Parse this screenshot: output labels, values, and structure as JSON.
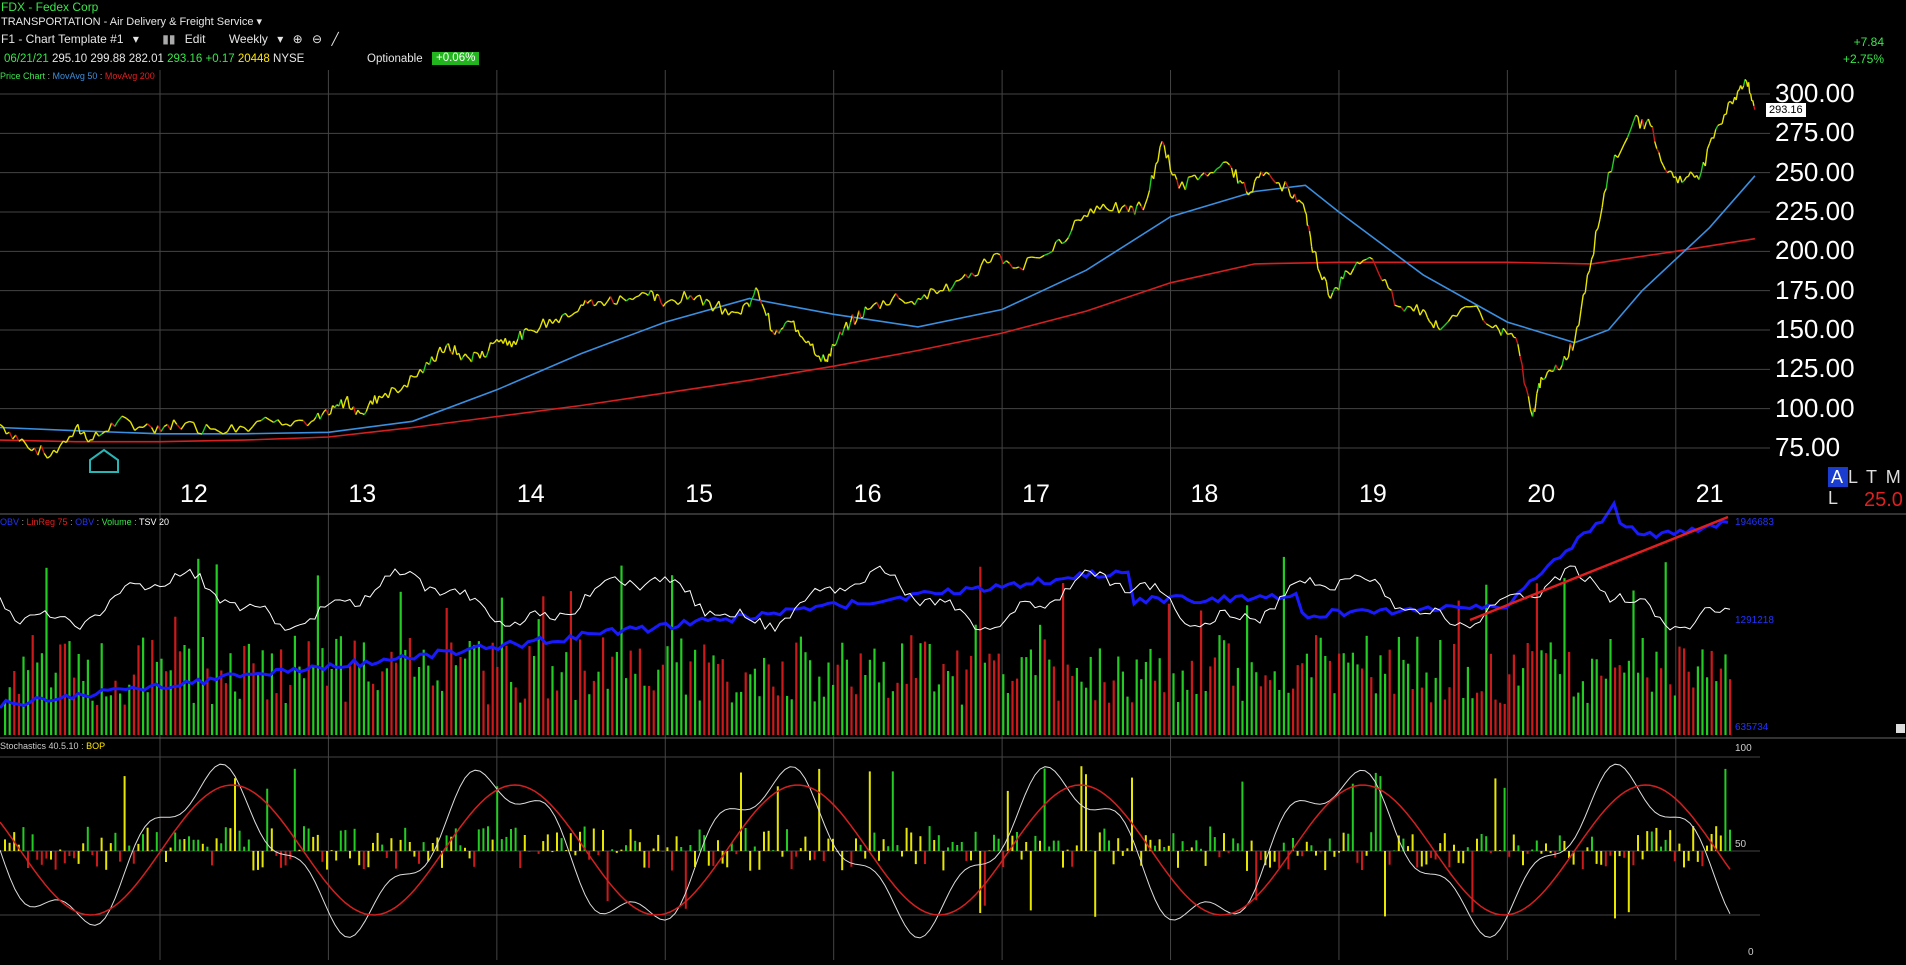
{
  "header": {
    "title": "FDX - Fedex Corp",
    "sector": "TRANSPORTATION - Air Delivery & Freight Service"
  },
  "toolbar": {
    "template": "F1 - Chart Template #1",
    "edit": "Edit",
    "period": "Weekly"
  },
  "quote": {
    "date": "06/21/21",
    "open": "295.10",
    "high": "299.88",
    "low": "282.01",
    "close": "293.16",
    "change": "+0.17",
    "volume": "20448",
    "exchange": "NYSE",
    "optionable": "Optionable",
    "pct_badge": "+0.06%",
    "net_change": "+7.84",
    "pct_change": "+2.75%"
  },
  "studies": {
    "price_chart": "Price Chart",
    "ma50": "MovAvg 50",
    "ma200": "MovAvg 200",
    "obv": "OBV",
    "linreg": "LinReg 75",
    "obv2": "OBV",
    "volume": "Volume",
    "tsv": "TSV 20",
    "stoch": "Stochastics 40.5.10",
    "bop": "BOP"
  },
  "price_axis": {
    "labels": [
      "300.00",
      "275.00",
      "250.00",
      "225.00",
      "200.00",
      "175.00",
      "150.00",
      "125.00",
      "100.00",
      "75.00"
    ],
    "last_tag": "293.16",
    "scale_a": "A",
    "scale_rest": "L T M L",
    "scale_value": "25.0"
  },
  "volume_axis": {
    "top": "1946683",
    "mid": "1291218",
    "bottom": "635734"
  },
  "stoch_axis": {
    "top": "100",
    "mid": "50",
    "bottom": "0"
  },
  "colors": {
    "up": "#22cc22",
    "down": "#cc1a1a",
    "neutral": "#e6e600",
    "ma50": "#3a8fe0",
    "ma200": "#d42020",
    "obv": "#1a1aff",
    "tsv": "#ffffff"
  },
  "chart_data": {
    "type": "line",
    "title": "FDX - Fedex Corp",
    "x_unit": "year",
    "xlim": [
      2011.05,
      2021.5
    ],
    "ylim": [
      70,
      315
    ],
    "x_ticks": [
      "12",
      "13",
      "14",
      "15",
      "16",
      "17",
      "18",
      "19",
      "20",
      "21"
    ],
    "series": [
      {
        "name": "Price Chart",
        "x": [
          2011.05,
          2011.2,
          2011.35,
          2011.5,
          2011.6,
          2011.75,
          2011.95,
          2012.1,
          2012.3,
          2012.5,
          2012.7,
          2012.9,
          2013.0,
          2013.1,
          2013.2,
          2013.3,
          2013.45,
          2013.6,
          2013.7,
          2013.8,
          2013.9,
          2014.0,
          2014.1,
          2014.2,
          2014.35,
          2014.5,
          2014.6,
          2014.75,
          2014.9,
          2015.0,
          2015.15,
          2015.3,
          2015.45,
          2015.55,
          2015.65,
          2015.75,
          2015.85,
          2015.95,
          2016.0,
          2016.1,
          2016.2,
          2016.35,
          2016.5,
          2016.65,
          2016.8,
          2016.95,
          2017.1,
          2017.3,
          2017.45,
          2017.6,
          2017.75,
          2017.85,
          2017.95,
          2018.05,
          2018.2,
          2018.35,
          2018.45,
          2018.55,
          2018.7,
          2018.8,
          2018.85,
          2018.95,
          2019.05,
          2019.2,
          2019.35,
          2019.5,
          2019.6,
          2019.8,
          2019.95,
          2020.05,
          2020.15,
          2020.2,
          2020.3,
          2020.4,
          2020.5,
          2020.6,
          2020.75,
          2020.85,
          2020.95,
          2021.05,
          2021.15,
          2021.25,
          2021.35,
          2021.42,
          2021.47
        ],
        "values": [
          90,
          78,
          70,
          88,
          80,
          92,
          88,
          90,
          87,
          88,
          93,
          92,
          96,
          105,
          97,
          108,
          115,
          128,
          140,
          133,
          132,
          144,
          143,
          150,
          157,
          166,
          168,
          170,
          172,
          167,
          172,
          165,
          160,
          175,
          147,
          155,
          143,
          130,
          140,
          155,
          163,
          170,
          170,
          175,
          183,
          198,
          190,
          200,
          220,
          230,
          225,
          230,
          270,
          240,
          250,
          255,
          238,
          248,
          240,
          225,
          200,
          170,
          187,
          195,
          165,
          163,
          150,
          165,
          150,
          145,
          95,
          120,
          125,
          143,
          195,
          250,
          283,
          280,
          250,
          245,
          250,
          280,
          298,
          308,
          290
        ]
      },
      {
        "name": "MovAvg 50",
        "x": [
          2011.05,
          2011.5,
          2012.0,
          2012.5,
          2013.0,
          2013.5,
          2014.0,
          2014.5,
          2015.0,
          2015.5,
          2016.0,
          2016.5,
          2017.0,
          2017.5,
          2018.0,
          2018.5,
          2018.8,
          2019.0,
          2019.5,
          2020.0,
          2020.4,
          2020.6,
          2020.8,
          2021.0,
          2021.2,
          2021.47
        ],
        "values": [
          88,
          86,
          84,
          84,
          85,
          92,
          112,
          135,
          155,
          170,
          160,
          152,
          163,
          188,
          222,
          238,
          242,
          225,
          185,
          155,
          142,
          150,
          175,
          195,
          215,
          248
        ]
      },
      {
        "name": "MovAvg 200",
        "x": [
          2011.05,
          2011.5,
          2012.0,
          2012.5,
          2013.0,
          2013.5,
          2014.0,
          2014.5,
          2015.0,
          2015.5,
          2016.0,
          2016.5,
          2017.0,
          2017.5,
          2018.0,
          2018.5,
          2019.0,
          2019.5,
          2020.0,
          2020.5,
          2021.0,
          2021.47
        ],
        "values": [
          80,
          79,
          79,
          80,
          82,
          88,
          95,
          102,
          110,
          118,
          127,
          137,
          148,
          162,
          180,
          192,
          193,
          193,
          193,
          192,
          200,
          208
        ]
      }
    ],
    "volume_pane": {
      "axis_labels": [
        "1946683",
        "1291218",
        "635734"
      ]
    },
    "stochastics_pane": {
      "axis_labels": [
        "100",
        "50",
        "0"
      ]
    }
  }
}
